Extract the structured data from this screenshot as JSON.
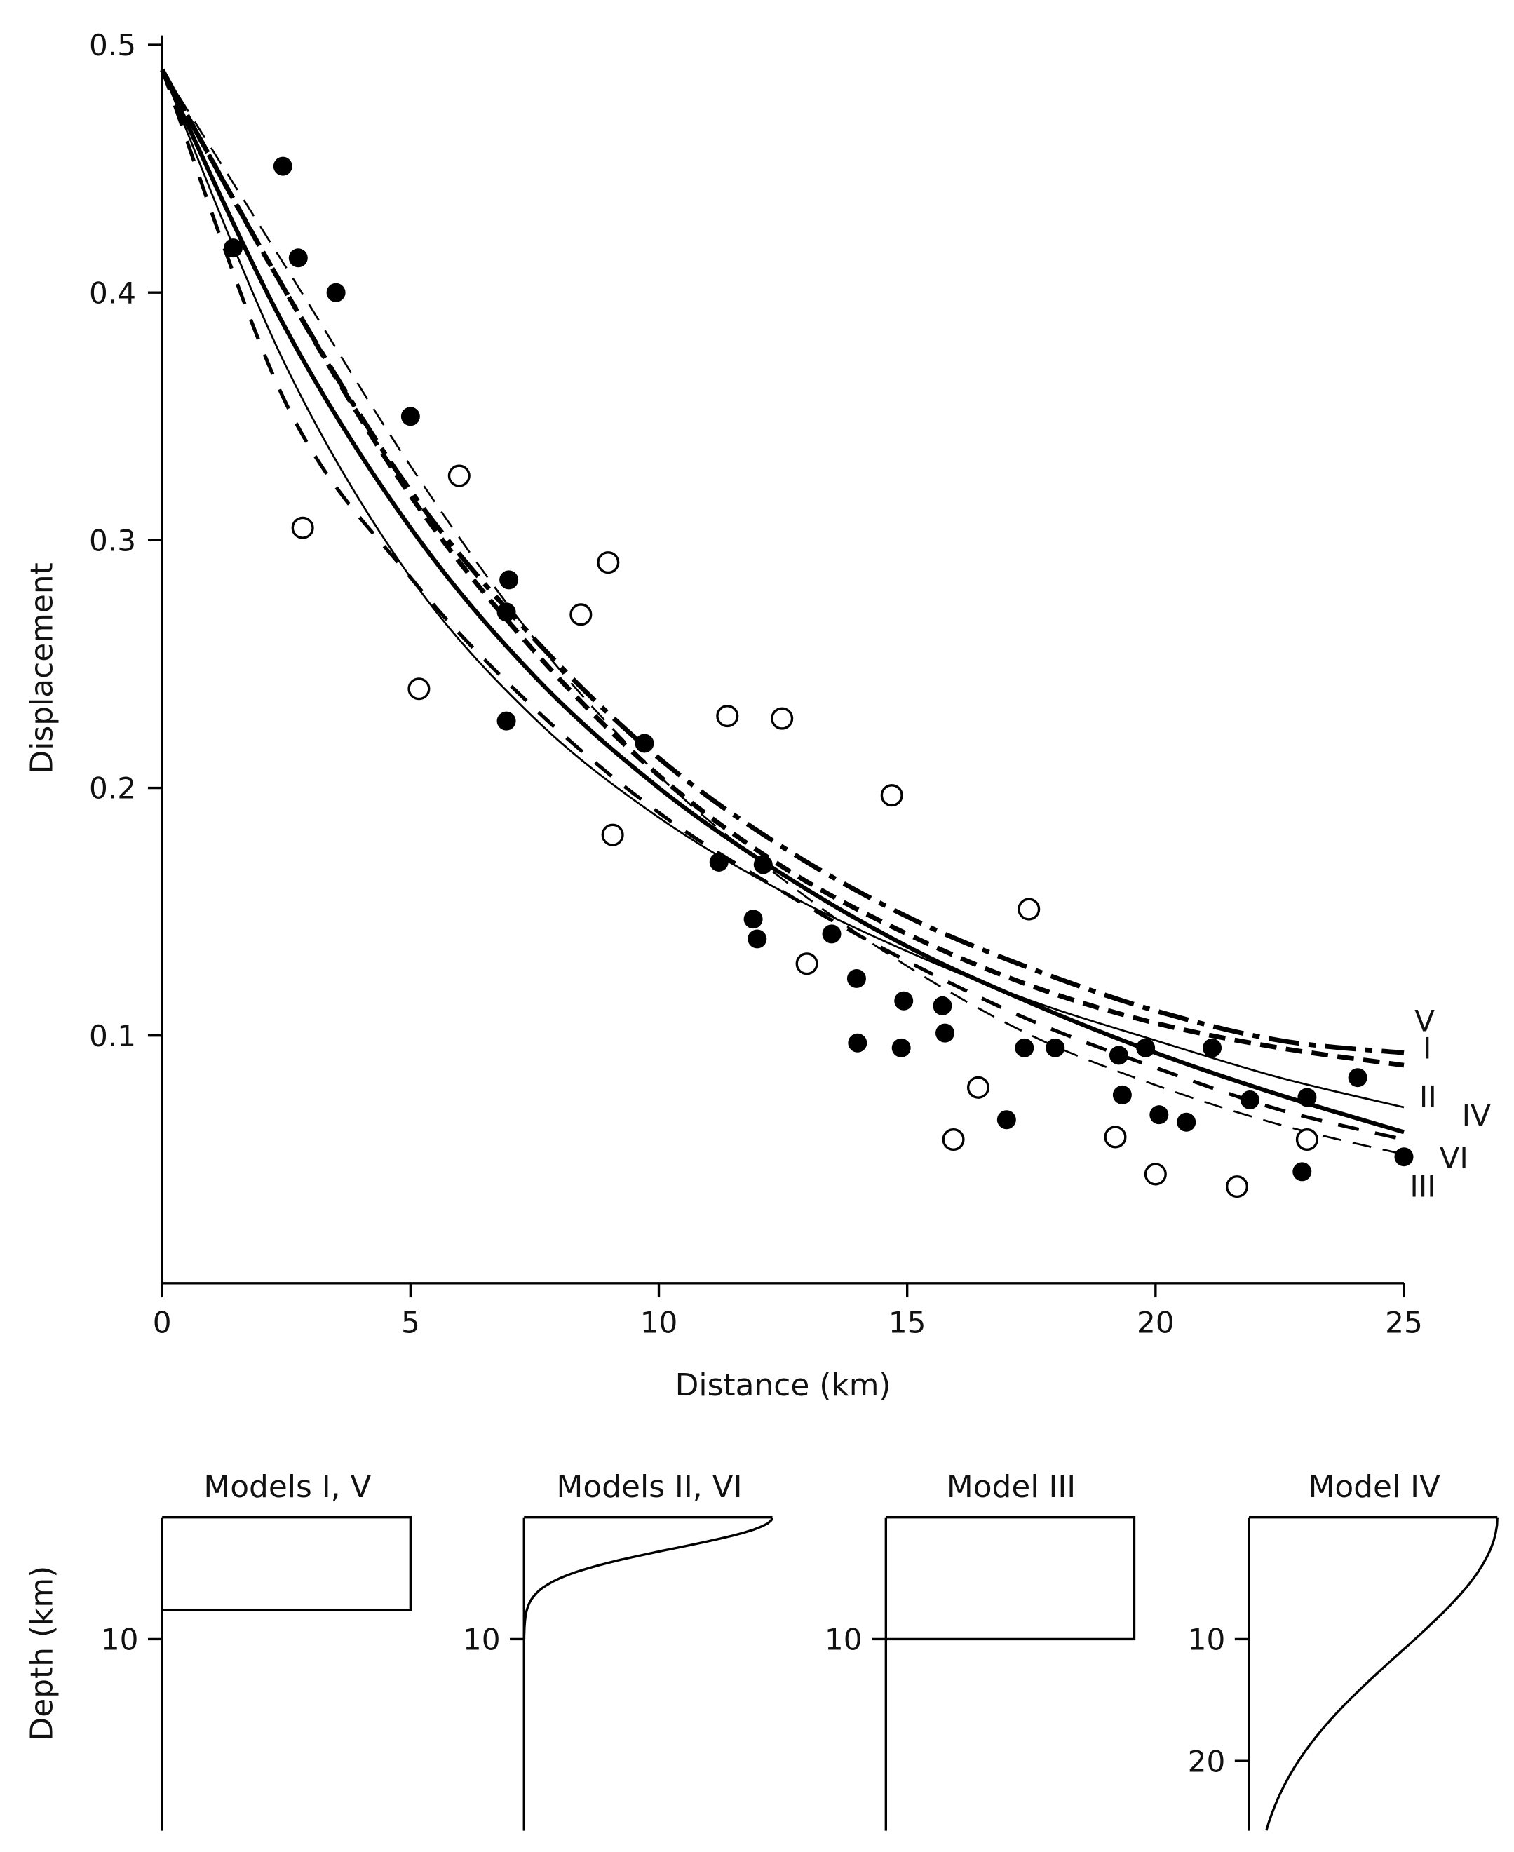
{
  "chart_data": {
    "type": "scatter",
    "xlabel": "Distance (km)",
    "ylabel": "Displacement",
    "xlim": [
      0,
      25
    ],
    "ylim": [
      0,
      0.5
    ],
    "xticks": [
      "0",
      "5",
      "10",
      "15",
      "20",
      "25"
    ],
    "yticks": [
      "0.1",
      "0.2",
      "0.3",
      "0.4",
      "0.5"
    ],
    "grid": false,
    "series_points": [
      {
        "name": "filled",
        "marker": "filled-circle",
        "points": [
          [
            1.43,
            0.418
          ],
          [
            2.43,
            0.451
          ],
          [
            2.74,
            0.414
          ],
          [
            3.5,
            0.4
          ],
          [
            5.0,
            0.35
          ],
          [
            6.98,
            0.284
          ],
          [
            6.93,
            0.271
          ],
          [
            6.93,
            0.227
          ],
          [
            9.71,
            0.218
          ],
          [
            11.21,
            0.17
          ],
          [
            12.1,
            0.169
          ],
          [
            11.9,
            0.147
          ],
          [
            11.98,
            0.139
          ],
          [
            13.48,
            0.141
          ],
          [
            13.98,
            0.123
          ],
          [
            14.0,
            0.097
          ],
          [
            14.93,
            0.114
          ],
          [
            14.88,
            0.095
          ],
          [
            15.71,
            0.112
          ],
          [
            15.76,
            0.101
          ],
          [
            17.0,
            0.066
          ],
          [
            17.36,
            0.095
          ],
          [
            17.98,
            0.095
          ],
          [
            19.26,
            0.092
          ],
          [
            19.33,
            0.076
          ],
          [
            19.8,
            0.095
          ],
          [
            20.07,
            0.068
          ],
          [
            20.62,
            0.065
          ],
          [
            21.14,
            0.095
          ],
          [
            21.9,
            0.074
          ],
          [
            23.05,
            0.075
          ],
          [
            22.95,
            0.045
          ],
          [
            24.07,
            0.083
          ],
          [
            25.0,
            0.051
          ]
        ]
      },
      {
        "name": "open",
        "marker": "open-circle",
        "points": [
          [
            2.83,
            0.305
          ],
          [
            5.17,
            0.24
          ],
          [
            5.98,
            0.326
          ],
          [
            8.43,
            0.27
          ],
          [
            8.98,
            0.291
          ],
          [
            9.07,
            0.181
          ],
          [
            11.38,
            0.229
          ],
          [
            12.48,
            0.228
          ],
          [
            12.98,
            0.129
          ],
          [
            14.69,
            0.197
          ],
          [
            15.93,
            0.058
          ],
          [
            16.43,
            0.079
          ],
          [
            17.45,
            0.151
          ],
          [
            19.19,
            0.059
          ],
          [
            20.0,
            0.044
          ],
          [
            21.64,
            0.039
          ],
          [
            23.05,
            0.058
          ]
        ]
      }
    ],
    "curve_x": [
      0,
      2.5,
      5,
      7.5,
      10,
      12.5,
      15,
      17.5,
      20,
      22.5,
      25
    ],
    "series": [
      {
        "name": "V",
        "style": "dash-dot-thick",
        "values": [
          0.49,
          0.4,
          0.32,
          0.26,
          0.212,
          0.176,
          0.148,
          0.127,
          0.11,
          0.098,
          0.093
        ]
      },
      {
        "name": "I",
        "style": "dashed-thick",
        "values": [
          0.49,
          0.4,
          0.318,
          0.255,
          0.205,
          0.168,
          0.141,
          0.12,
          0.105,
          0.095,
          0.088
        ]
      },
      {
        "name": "II",
        "style": "solid-thin",
        "values": [
          0.49,
          0.37,
          0.285,
          0.228,
          0.188,
          0.158,
          0.134,
          0.114,
          0.098,
          0.083,
          0.071
        ]
      },
      {
        "name": "IV",
        "style": "solid-thick",
        "values": [
          0.49,
          0.385,
          0.305,
          0.245,
          0.2,
          0.165,
          0.136,
          0.113,
          0.093,
          0.076,
          0.061
        ]
      },
      {
        "name": "VI",
        "style": "dashed-thin",
        "values": [
          0.49,
          0.41,
          0.33,
          0.26,
          0.205,
          0.163,
          0.128,
          0.1,
          0.08,
          0.064,
          0.052
        ]
      },
      {
        "name": "III",
        "style": "dashed-medium",
        "values": [
          0.49,
          0.355,
          0.285,
          0.232,
          0.19,
          0.158,
          0.13,
          0.106,
          0.087,
          0.07,
          0.058
        ]
      }
    ],
    "depth_models": {
      "ylabel": "Depth (km)",
      "panels": [
        {
          "title": "Models I, V",
          "shape": "box",
          "depth_km": 7.6,
          "ticks": [
            "10"
          ]
        },
        {
          "title": "Models II, VI",
          "shape": "curve",
          "depth_km": 10,
          "ticks": [
            "10"
          ]
        },
        {
          "title": "Model III",
          "shape": "box",
          "depth_km": 10,
          "ticks": [
            "10"
          ]
        },
        {
          "title": "Model IV",
          "shape": "curve",
          "depth_km": 25.7,
          "ticks": [
            "10",
            "20"
          ]
        }
      ]
    }
  }
}
